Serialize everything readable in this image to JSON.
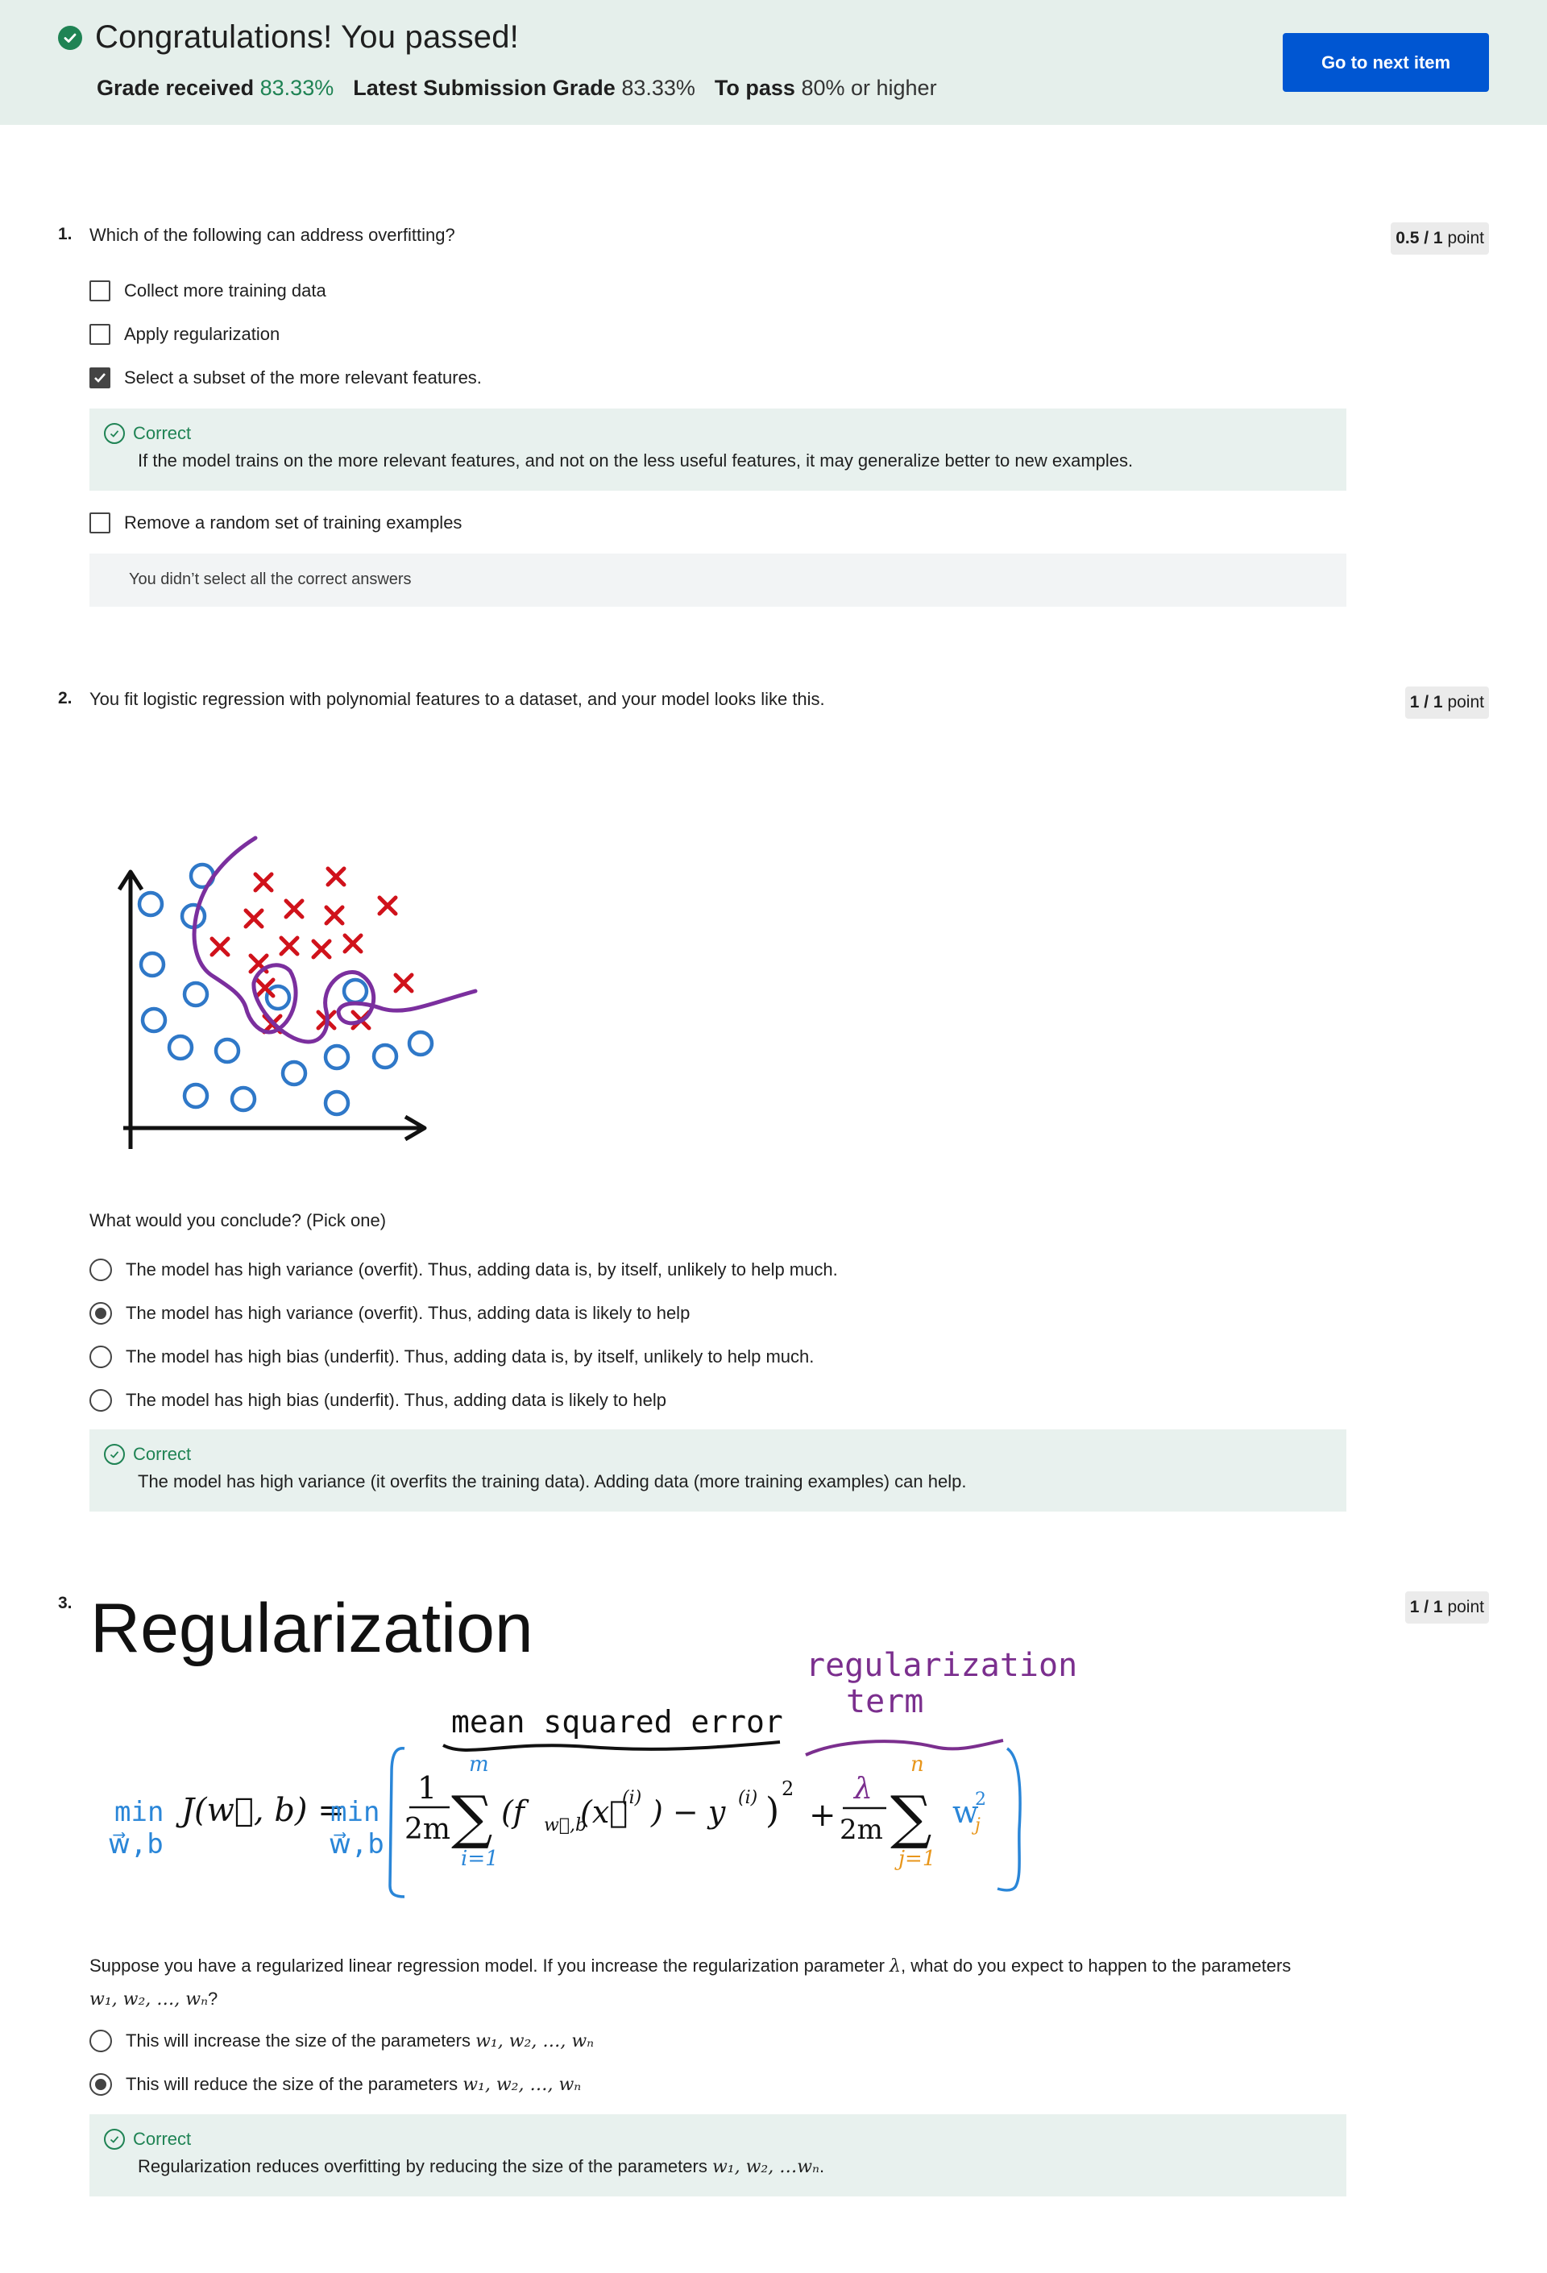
{
  "banner": {
    "title": "Congratulations! You passed!",
    "grade_label": "Grade received",
    "grade_value": "83.33%",
    "latest_label": "Latest Submission Grade",
    "latest_value": "83.33%",
    "pass_label": "To pass",
    "pass_value": "80% or higher",
    "next_button": "Go to next item",
    "accent": "#1f8354",
    "button_color": "#0056d2"
  },
  "q1": {
    "number": "1.",
    "text": "Which of the following can address overfitting?",
    "points_score": "0.5 / 1",
    "points_unit": "point",
    "options": [
      {
        "label": "Collect more training data",
        "checked": false
      },
      {
        "label": "Apply regularization",
        "checked": false
      },
      {
        "label": "Select a subset of the more relevant features.",
        "checked": true
      },
      {
        "label": "Remove a random set of training examples",
        "checked": false
      }
    ],
    "feedback_title": "Correct",
    "feedback_text": "If the model trains on the more relevant features, and not on the less useful features, it may generalize better to new examples.",
    "notice": "You didn’t select all the correct answers"
  },
  "q2": {
    "number": "2.",
    "text": "You fit logistic regression with polynomial features to a dataset, and your model looks like this.",
    "points_score": "1 / 1",
    "points_unit": "point",
    "prompt": "What would you conclude? (Pick one)",
    "options": [
      {
        "label": "The model has high variance (overfit). Thus, adding data is, by itself, unlikely to help much.",
        "checked": false
      },
      {
        "label": "The model has high variance (overfit). Thus, adding data is likely to help",
        "checked": true
      },
      {
        "label": "The model has high bias (underfit). Thus, adding data is, by itself, unlikely to help much.",
        "checked": false
      },
      {
        "label": "The model has high bias (underfit). Thus, adding data is likely to help",
        "checked": false
      }
    ],
    "feedback_title": "Correct",
    "feedback_text": "The model has high variance (it overfits the training data). Adding data (more training examples) can help."
  },
  "q3": {
    "number": "3.",
    "points_score": "1 / 1",
    "points_unit": "point",
    "figure": {
      "title": "Regularization",
      "mse_note": "mean squared error",
      "reg_note_1": "regularization",
      "reg_note_2": "term",
      "min_text": "min",
      "min_sub": "w⃗,b",
      "cost": "J(w⃗, b) =",
      "one": "1",
      "two_m": "2m",
      "sum_top_m": "m",
      "sum_bottom_i": "i=1",
      "sum_body": "(f",
      "f_sub": "w⃗,b",
      "f_arg": "(x⃗",
      "sup_i": "(i)",
      "minus_y": ") − y",
      "close_sq": ")",
      "square": "2",
      "plus": "+",
      "lambda": "λ",
      "two_m_2": "2m",
      "sum_top_n": "n",
      "sum_bottom_j": "j=1",
      "wj": "w",
      "wj_sub": "j",
      "wj_sup": "2",
      "sigma": "∑",
      "purple": "#7b2f8e",
      "blue": "#2a86d8",
      "orange": "#e8961b"
    },
    "text_a": "Suppose you have a regularized linear regression model.  If you increase the regularization parameter ",
    "text_lambda": "λ",
    "text_b": ", what do you expect to happen to the parameters",
    "text_params": "w₁, w₂, …, wₙ",
    "text_q": "?",
    "options": [
      {
        "label": "This will increase the size of the parameters ",
        "math": "w₁, w₂, …, wₙ",
        "checked": false
      },
      {
        "label": "This will reduce the size of the parameters ",
        "math": "w₁, w₂, …, wₙ",
        "checked": true
      }
    ],
    "feedback_title": "Correct",
    "feedback_text": "Regularization reduces overfitting by reducing the size of the parameters ",
    "feedback_math": "w₁, w₂, …wₙ",
    "feedback_end": "."
  }
}
